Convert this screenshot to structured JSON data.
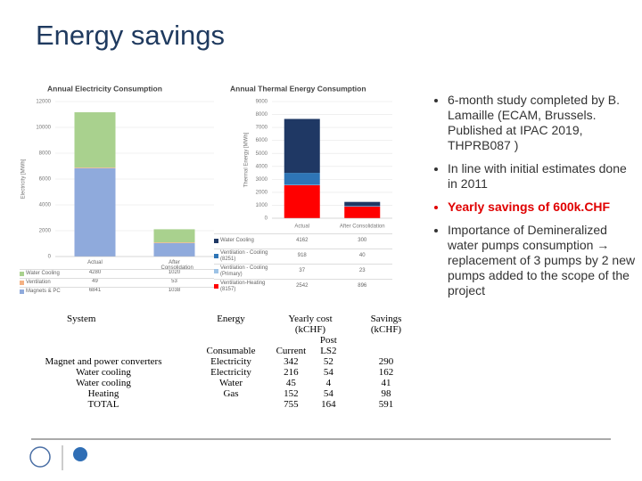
{
  "title": "Energy savings",
  "bullets": [
    "6-month study completed by B. Lamaille (ECAM, Brussels. Published at IPAC 2019, THPRB087 )",
    "In line with initial estimates done in 2011",
    "Yearly savings of 600k.CHF",
    "Importance of Demineralized water pumps consumption → replacement of 3 pumps by 2 new pumps added to the scope of the project"
  ],
  "highlight_bullet": 2,
  "chart_data": [
    {
      "type": "bar",
      "stacked": true,
      "title": "Annual Electricity Consumption",
      "y_label": "Electricity [MWh]",
      "categories": [
        "Actual",
        "After Consolidation"
      ],
      "series": [
        {
          "name": "Water Cooling",
          "color": "#a9d18e",
          "values": [
            4280,
            1020
          ]
        },
        {
          "name": "Ventilation",
          "color": "#f4b183",
          "values": [
            49,
            53
          ]
        },
        {
          "name": "Magnets & PC",
          "color": "#8faadc",
          "values": [
            6841,
            1038
          ]
        }
      ],
      "ylim": [
        0,
        12000
      ],
      "yticks": [
        0,
        2000,
        4000,
        6000,
        8000,
        10000,
        12000
      ],
      "grid": true
    },
    {
      "type": "bar",
      "stacked": true,
      "title": "Annual Thermal Energy Consumption",
      "y_label": "Thermal Energy [MWh]",
      "categories": [
        "Actual",
        "After Consolidation"
      ],
      "series": [
        {
          "name": "Water Cooling",
          "color": "#1f3864",
          "values": [
            4162,
            300
          ]
        },
        {
          "name": "Ventilation - Cooling (8251)",
          "color": "#2e75b6",
          "values": [
            918,
            40
          ]
        },
        {
          "name": "Ventilation - Cooling (Primary)",
          "color": "#9dc3e6",
          "values": [
            37,
            23
          ]
        },
        {
          "name": "Ventilation-Heating (8157)",
          "color": "#ff0000",
          "values": [
            2542,
            896
          ]
        }
      ],
      "ylim": [
        0,
        9000
      ],
      "yticks": [
        0,
        1000,
        2000,
        3000,
        4000,
        5000,
        6000,
        7000,
        8000,
        9000
      ],
      "grid": true
    }
  ],
  "table": {
    "header": [
      "System",
      "Energy",
      "Yearly cost (kCHF)",
      "Savings (kCHF)"
    ],
    "subheader": [
      "Consumable",
      "Current",
      "Post LS2"
    ],
    "rows": [
      {
        "system": "Magnet and power converters",
        "energy": "Electricity",
        "current": 342,
        "post": 52,
        "savings": 290
      },
      {
        "system": "Water cooling",
        "energy": "Electricity",
        "current": 216,
        "post": 54,
        "savings": 162
      },
      {
        "system": "Water cooling",
        "energy": "Water",
        "current": 45,
        "post": 4,
        "savings": 41
      },
      {
        "system": "Heating",
        "energy": "Gas",
        "current": 152,
        "post": 54,
        "savings": 98
      },
      {
        "system": "TOTAL",
        "current": 755,
        "post": 164,
        "savings": 591
      }
    ]
  }
}
